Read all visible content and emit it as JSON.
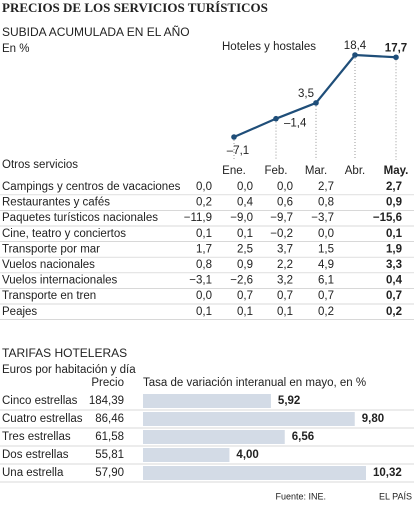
{
  "title": "PRECIOS DE LOS SERVICIOS TURÍSTICOS",
  "chart_data": [
    {
      "type": "line",
      "title": "SUBIDA ACUMULADA EN EL AÑO",
      "subtitle": "En %",
      "categories": [
        "Ene.",
        "Feb.",
        "Mar.",
        "Abr.",
        "May."
      ],
      "series": [
        {
          "name": "Hoteles y hostales",
          "color": "#1f4e79",
          "values": [
            -7.1,
            -1.4,
            3.5,
            18.4,
            17.7
          ],
          "value_labels": [
            "–7,1",
            "–1,4",
            "3,5",
            "18,4",
            "17,7"
          ]
        }
      ]
    },
    {
      "type": "bar",
      "title": "TARIFAS HOTELERAS",
      "subtitle": "Euros por habitación y día",
      "value_header": "Tasa de variación interanual en mayo, en %",
      "categories": [
        "Cinco estrellas",
        "Cuatro estrellas",
        "Tres estrellas",
        "Dos estrellas",
        "Una estrella"
      ],
      "values": [
        5.92,
        9.8,
        6.56,
        4.0,
        10.32
      ],
      "value_labels": [
        "5,92",
        "9,80",
        "6,56",
        "4,00",
        "10,32"
      ],
      "color": "#d3dbe6"
    }
  ],
  "hotel_prices": {
    "header": "Precio",
    "values": [
      "184,39",
      "86,46",
      "61,58",
      "55,81",
      "57,90"
    ]
  },
  "table": {
    "title": "Otros servicios",
    "rows": [
      [
        "Campings y centros de vacaciones",
        "0,0",
        "0,0",
        "0,0",
        "2,7",
        "2,7"
      ],
      [
        "Restaurantes y cafés",
        "0,2",
        "0,4",
        "0,6",
        "0,8",
        "0,9"
      ],
      [
        "Paquetes turísticos nacionales",
        "−11,9",
        "−9,0",
        "−9,7",
        "−3,7",
        "−15,6"
      ],
      [
        "Cine, teatro y conciertos",
        "0,1",
        "0,1",
        "−0,2",
        "0,0",
        "0,1"
      ],
      [
        "Transporte por mar",
        "1,7",
        "2,5",
        "3,7",
        "1,5",
        "1,9"
      ],
      [
        "Vuelos nacionales",
        "0,8",
        "0,9",
        "2,2",
        "4,9",
        "3,3"
      ],
      [
        "Vuelos internacionales",
        "−3,1",
        "−2,6",
        "3,2",
        "6,1",
        "0,4"
      ],
      [
        "Transporte en tren",
        "0,0",
        "0,7",
        "0,7",
        "0,7",
        "0,7"
      ],
      [
        "Peajes",
        "0,1",
        "0,1",
        "0,1",
        "0,2",
        "0,2"
      ]
    ]
  },
  "footer": {
    "source": "Fuente: INE.",
    "credit": "EL PAÍS"
  }
}
